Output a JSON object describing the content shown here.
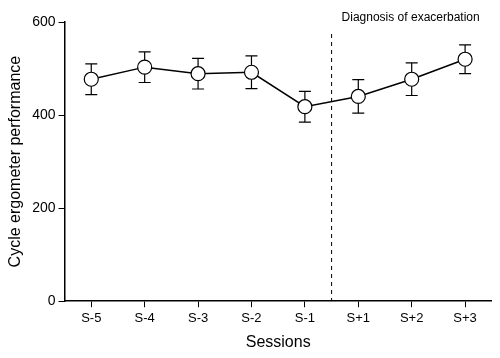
{
  "chart_data": {
    "type": "line",
    "x_label": "Sessions",
    "y_label": "Cycle ergometer performance",
    "categories": [
      "S-5",
      "S-4",
      "S-3",
      "S-2",
      "S-1",
      "S+1",
      "S+2",
      "S+3"
    ],
    "values": [
      477,
      503,
      489,
      492,
      418,
      440,
      477,
      520
    ],
    "errors": [
      33,
      33,
      33,
      35,
      33,
      36,
      35,
      31
    ],
    "color": "#000000",
    "marker": "circle",
    "line_style": "solid",
    "ylim": [
      0,
      600
    ],
    "yticks": [
      0,
      200,
      400,
      600
    ],
    "grid": false,
    "annotations": [
      {
        "text": "Diagnosis of exacerbation",
        "x_between": [
          "S-1",
          "S+1"
        ],
        "line_style": "dashed"
      }
    ]
  }
}
